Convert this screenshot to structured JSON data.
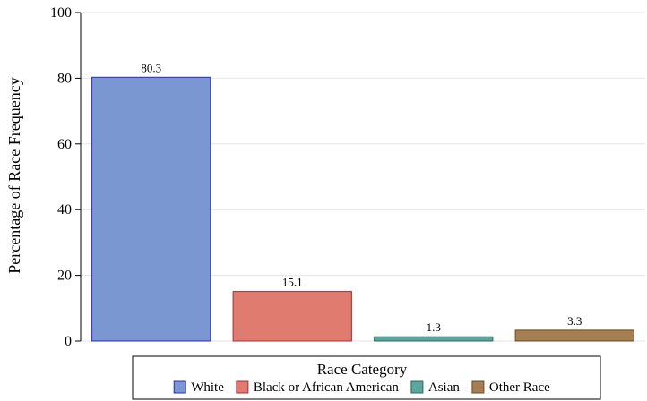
{
  "chart_data": {
    "type": "bar",
    "categories": [
      "White",
      "Black or African American",
      "Asian",
      "Other Race"
    ],
    "values": [
      80.3,
      15.1,
      1.3,
      3.3
    ],
    "data_labels": [
      "80.3",
      "15.1",
      "1.3",
      "3.3"
    ],
    "title": "",
    "xlabel": "",
    "ylabel": "Percentage of Race Frequency",
    "ylim": [
      0,
      100
    ],
    "yticks": [
      0,
      20,
      40,
      60,
      80,
      100
    ],
    "grid": true,
    "legend": {
      "title": "Race Category",
      "placement": "bottom-center"
    },
    "colors": {
      "fills": [
        "#7b97d2",
        "#e07b6f",
        "#5aa59c",
        "#a57f52"
      ],
      "strokes": [
        "#2828c8",
        "#b02a33",
        "#2a6b63",
        "#6e4a22"
      ]
    }
  }
}
